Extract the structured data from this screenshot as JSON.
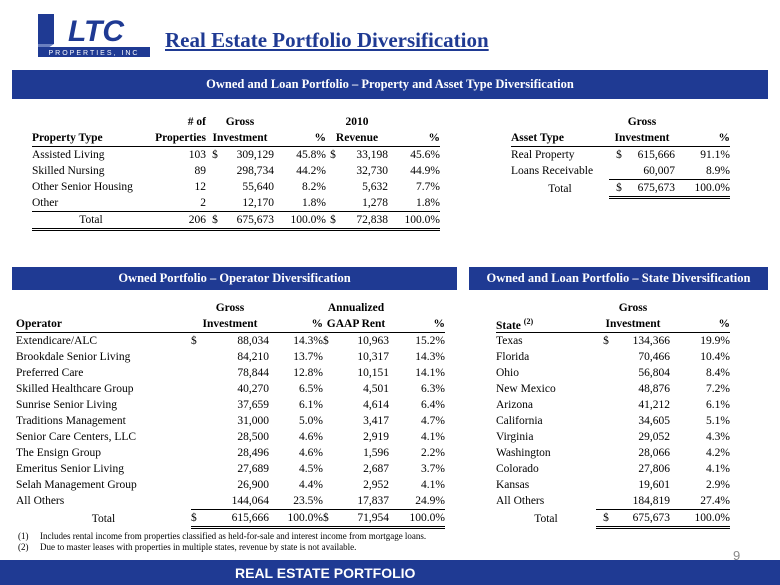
{
  "header": {
    "logo_text": "LTC",
    "logo_sub": "PROPERTIES, INC",
    "title": "Real Estate Portfolio Diversification"
  },
  "bands": {
    "top": "Owned and Loan Portfolio – Property and Asset Type Diversification",
    "operator": "Owned Portfolio – Operator Diversification",
    "state": "Owned and Loan Portfolio – State Diversification"
  },
  "property_table": {
    "head1": [
      "",
      "# of",
      "Gross",
      "",
      "2010",
      ""
    ],
    "head2": [
      "Property Type",
      "Properties",
      "Investment",
      "%",
      "Revenue",
      "%"
    ],
    "rows": [
      [
        "Assisted Living",
        "103",
        "$",
        "309,129",
        "45.8%",
        "$",
        "33,198",
        "45.6%"
      ],
      [
        "Skilled Nursing",
        "89",
        "",
        "298,734",
        "44.2%",
        "",
        "32,730",
        "44.9%"
      ],
      [
        "Other Senior Housing",
        "12",
        "",
        "55,640",
        "8.2%",
        "",
        "5,632",
        "7.7%"
      ],
      [
        "Other",
        "2",
        "",
        "12,170",
        "1.8%",
        "",
        "1,278",
        "1.8%"
      ]
    ],
    "total": [
      "Total",
      "206",
      "$",
      "675,673",
      "100.0%",
      "$",
      "72,838",
      "100.0%"
    ]
  },
  "asset_table": {
    "head1": [
      "",
      "Gross",
      ""
    ],
    "head2": [
      "Asset Type",
      "Investment",
      "%"
    ],
    "rows": [
      [
        "Real Property",
        "$",
        "615,666",
        "91.1%"
      ],
      [
        "Loans Receivable",
        "",
        "60,007",
        "8.9%"
      ]
    ],
    "total": [
      "Total",
      "$",
      "675,673",
      "100.0%"
    ]
  },
  "operator_table": {
    "head1": [
      "",
      "Gross",
      "",
      "Annualized",
      ""
    ],
    "head2": [
      "Operator",
      "Investment",
      "%",
      "GAAP Rent",
      "%"
    ],
    "rows": [
      [
        "Extendicare/ALC",
        "$",
        "88,034",
        "14.3%",
        "$",
        "10,963",
        "15.2%"
      ],
      [
        "Brookdale Senior Living",
        "",
        "84,210",
        "13.7%",
        "",
        "10,317",
        "14.3%"
      ],
      [
        "Preferred Care",
        "",
        "78,844",
        "12.8%",
        "",
        "10,151",
        "14.1%"
      ],
      [
        "Skilled Healthcare Group",
        "",
        "40,270",
        "6.5%",
        "",
        "4,501",
        "6.3%"
      ],
      [
        "Sunrise Senior Living",
        "",
        "37,659",
        "6.1%",
        "",
        "4,614",
        "6.4%"
      ],
      [
        "Traditions Management",
        "",
        "31,000",
        "5.0%",
        "",
        "3,417",
        "4.7%"
      ],
      [
        "Senior Care Centers, LLC",
        "",
        "28,500",
        "4.6%",
        "",
        "2,919",
        "4.1%"
      ],
      [
        "The Ensign Group",
        "",
        "28,496",
        "4.6%",
        "",
        "1,596",
        "2.2%"
      ],
      [
        "Emeritus Senior Living",
        "",
        "27,689",
        "4.5%",
        "",
        "2,687",
        "3.7%"
      ],
      [
        "Selah Management Group",
        "",
        "26,900",
        "4.4%",
        "",
        "2,952",
        "4.1%"
      ],
      [
        "All Others",
        "",
        "144,064",
        "23.5%",
        "",
        "17,837",
        "24.9%"
      ]
    ],
    "total": [
      "Total",
      "$",
      "615,666",
      "100.0%",
      "$",
      "71,954",
      "100.0%"
    ]
  },
  "state_table": {
    "head1": [
      "",
      "Gross",
      ""
    ],
    "head2": [
      "State",
      "Investment",
      "%"
    ],
    "state_sup": "(2)",
    "rows": [
      [
        "Texas",
        "$",
        "134,366",
        "19.9%"
      ],
      [
        "Florida",
        "",
        "70,466",
        "10.4%"
      ],
      [
        "Ohio",
        "",
        "56,804",
        "8.4%"
      ],
      [
        "New Mexico",
        "",
        "48,876",
        "7.2%"
      ],
      [
        "Arizona",
        "",
        "41,212",
        "6.1%"
      ],
      [
        "California",
        "",
        "34,605",
        "5.1%"
      ],
      [
        "Virginia",
        "",
        "29,052",
        "4.3%"
      ],
      [
        "Washington",
        "",
        "28,066",
        "4.2%"
      ],
      [
        "Colorado",
        "",
        "27,806",
        "4.1%"
      ],
      [
        "Kansas",
        "",
        "19,601",
        "2.9%"
      ],
      [
        "All Others",
        "",
        "184,819",
        "27.4%"
      ]
    ],
    "total": [
      "Total",
      "$",
      "675,673",
      "100.0%"
    ]
  },
  "notes": [
    {
      "num": "(1)",
      "text": "Includes rental income from properties classified as held-for-sale and interest income from mortgage loans."
    },
    {
      "num": "(2)",
      "text": "Due to master leases with properties in multiple states, revenue by state is not available."
    }
  ],
  "page_number": "9",
  "footer": "REAL ESTATE PORTFOLIO",
  "colors": {
    "brand_blue": "#1f3a93"
  }
}
